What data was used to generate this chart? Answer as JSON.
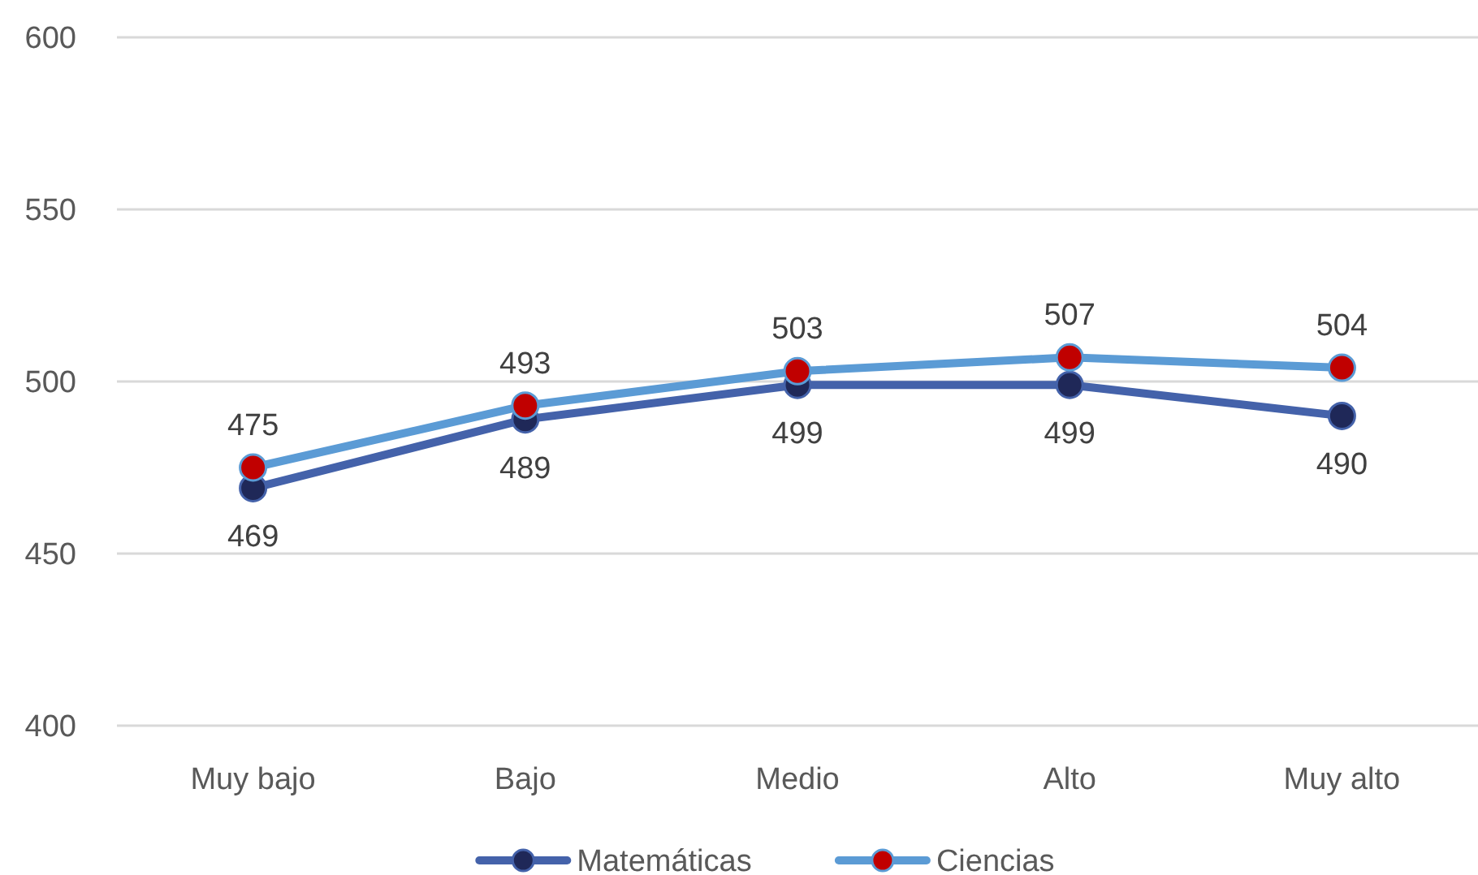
{
  "chart_data": {
    "type": "line",
    "categories": [
      "Muy bajo",
      "Bajo",
      "Medio",
      "Alto",
      "Muy alto"
    ],
    "series": [
      {
        "name": "Matemáticas",
        "color": "#4462aa",
        "values": [
          469,
          489,
          499,
          499,
          490
        ]
      },
      {
        "name": "Ciencias",
        "color": "#5b9bd5",
        "values": [
          475,
          493,
          503,
          507,
          504
        ]
      }
    ],
    "ylim": [
      400,
      600
    ],
    "yticks": [
      400,
      450,
      500,
      550,
      600
    ],
    "grid": "y",
    "legend": "bottom",
    "marker": "circle",
    "line_style": "solid",
    "data_labels": true
  }
}
